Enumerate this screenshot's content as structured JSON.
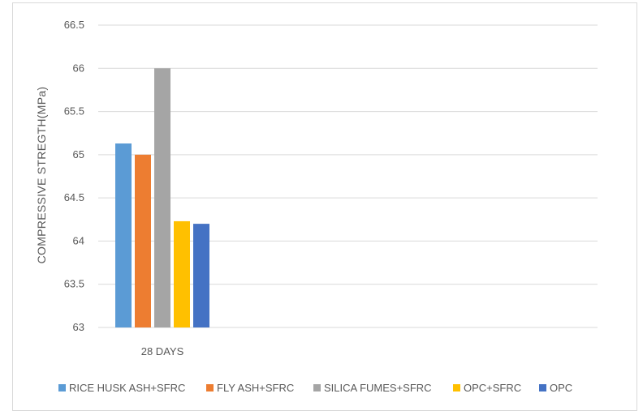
{
  "chart_data": {
    "type": "bar",
    "categories": [
      "28 DAYS"
    ],
    "series": [
      {
        "name": "RICE HUSK ASH+SFRC",
        "values": [
          65.13
        ],
        "color": "#5b9bd5"
      },
      {
        "name": "FLY ASH+SFRC",
        "values": [
          65.0
        ],
        "color": "#ed7d31"
      },
      {
        "name": "SILICA FUMES+SFRC",
        "values": [
          66.0
        ],
        "color": "#a5a5a5"
      },
      {
        "name": "OPC+SFRC",
        "values": [
          64.23
        ],
        "color": "#ffc000"
      },
      {
        "name": "OPC",
        "values": [
          64.2
        ],
        "color": "#4472c4"
      }
    ],
    "ylabel": "COMPRESSIVE STREGTH(MPa)",
    "xlabel": "",
    "ylim": [
      63,
      66.5
    ],
    "yticks": [
      "63",
      "63.5",
      "64",
      "64.5",
      "65",
      "65.5",
      "66",
      "66.5"
    ],
    "grid": true,
    "legend_position": "bottom"
  }
}
